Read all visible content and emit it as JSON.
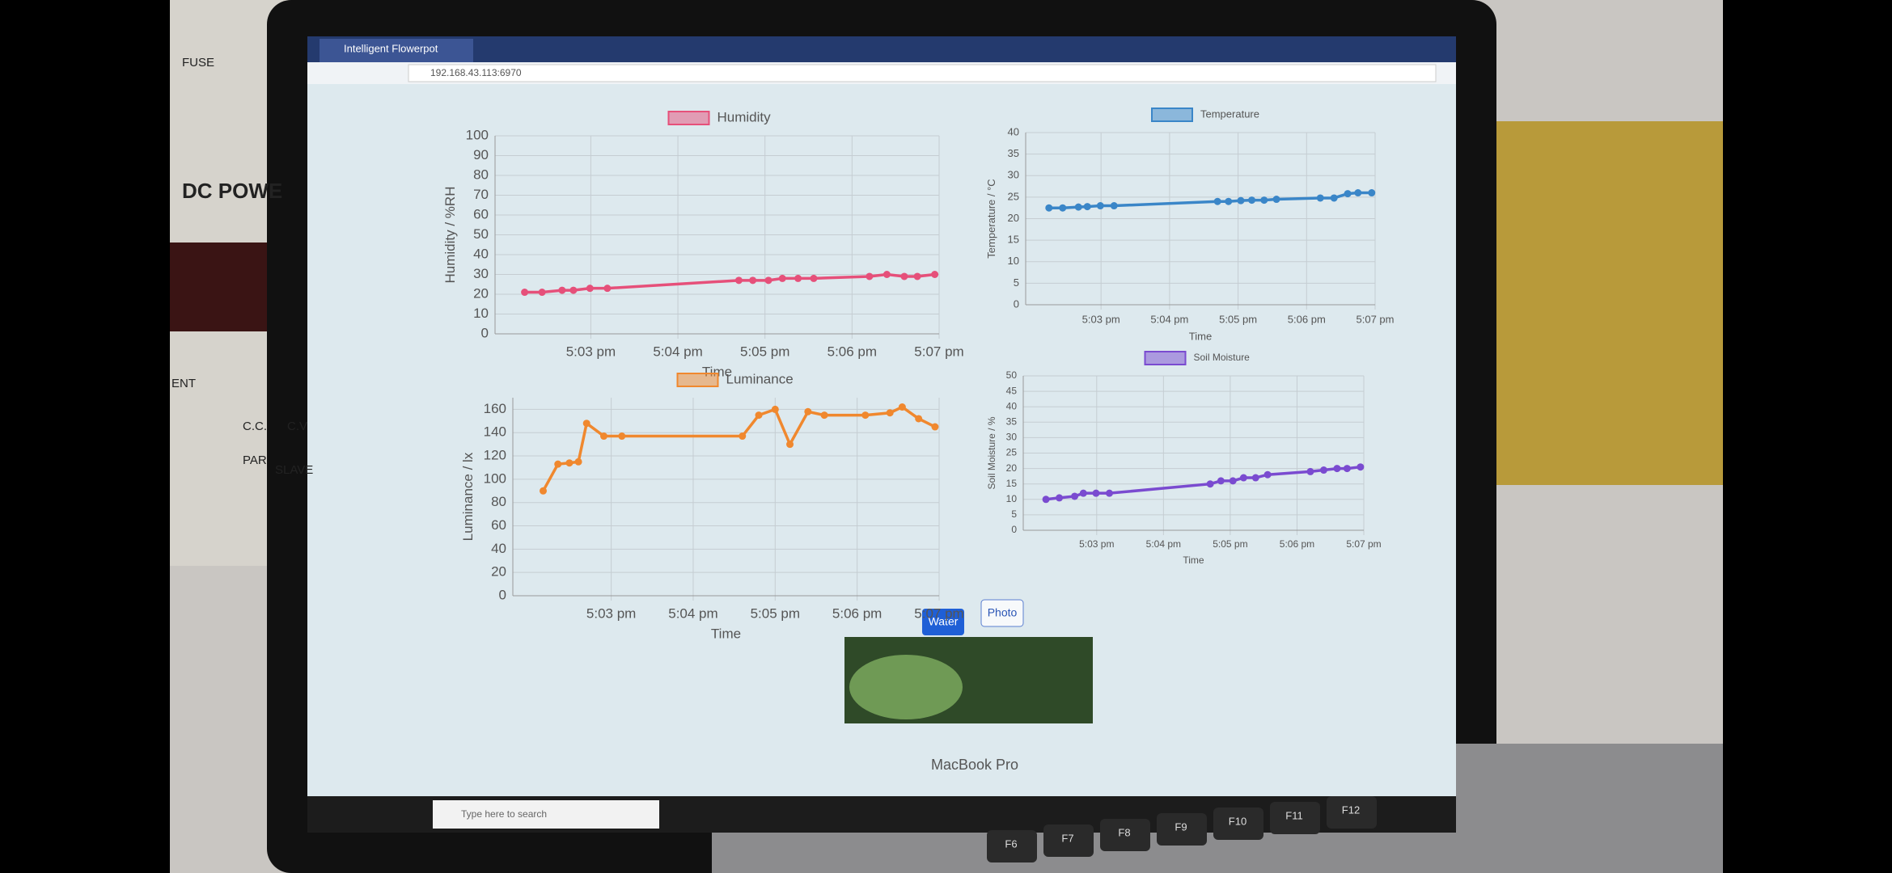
{
  "browser": {
    "tab_title": "Intelligent Flowerpot",
    "url": "192.168.43.113:6970"
  },
  "chart_data": [
    {
      "type": "line",
      "xlabel": "Time",
      "ylabel": "Humidity / %RH",
      "x": [
        2.24,
        2.44,
        2.67,
        2.8,
        2.99,
        3.19,
        4.7,
        4.86,
        5.04,
        5.2,
        5.38,
        5.56,
        6.2,
        6.4,
        6.6,
        6.75,
        6.95
      ],
      "series": [
        {
          "name": "Humidity",
          "color": "#e6507a",
          "values": [
            21,
            21,
            22,
            22,
            23,
            23,
            27,
            27,
            27,
            28,
            28,
            28,
            29,
            30,
            29,
            29,
            30
          ]
        }
      ],
      "xlim": [
        1.9,
        7
      ],
      "xticks": [
        {
          "value": 3,
          "label": "5:03 pm"
        },
        {
          "value": 4,
          "label": "5:04 pm"
        },
        {
          "value": 5,
          "label": "5:05 pm"
        },
        {
          "value": 6,
          "label": "5:06 pm"
        },
        {
          "value": 7,
          "label": "5:07 pm"
        }
      ],
      "ylim": [
        0,
        100
      ],
      "yticks": [
        0,
        10,
        20,
        30,
        40,
        50,
        60,
        70,
        80,
        90,
        100
      ],
      "grid": true
    },
    {
      "type": "line",
      "xlabel": "Time",
      "ylabel": "Temperature / °C",
      "x": [
        2.24,
        2.44,
        2.67,
        2.8,
        2.99,
        3.19,
        4.7,
        4.86,
        5.04,
        5.2,
        5.38,
        5.56,
        6.2,
        6.4,
        6.6,
        6.75,
        6.95
      ],
      "series": [
        {
          "name": "Temperature",
          "color": "#3a86c8",
          "values": [
            22.5,
            22.5,
            22.7,
            22.8,
            23,
            23,
            24,
            24,
            24.2,
            24.3,
            24.3,
            24.5,
            24.8,
            24.8,
            25.8,
            26,
            26
          ]
        }
      ],
      "xlim": [
        1.9,
        7
      ],
      "xticks": [
        {
          "value": 3,
          "label": "5:03 pm"
        },
        {
          "value": 4,
          "label": "5:04 pm"
        },
        {
          "value": 5,
          "label": "5:05 pm"
        },
        {
          "value": 6,
          "label": "5:06 pm"
        },
        {
          "value": 7,
          "label": "5:07 pm"
        }
      ],
      "ylim": [
        0,
        40
      ],
      "yticks": [
        0,
        5,
        10,
        15,
        20,
        25,
        30,
        35,
        40
      ],
      "grid": true
    },
    {
      "type": "line",
      "xlabel": "Time",
      "ylabel": "Luminance / lx",
      "x": [
        2.17,
        2.35,
        2.49,
        2.6,
        2.7,
        2.91,
        3.13,
        4.6,
        4.8,
        5.0,
        5.18,
        5.4,
        5.6,
        6.1,
        6.4,
        6.55,
        6.75,
        6.95
      ],
      "series": [
        {
          "name": "Luminance",
          "color": "#f0882e",
          "values": [
            90,
            113,
            114,
            115,
            148,
            137,
            137,
            137,
            155,
            160,
            130,
            158,
            155,
            155,
            157,
            162,
            152,
            145
          ]
        }
      ],
      "xlim": [
        1.8,
        7
      ],
      "xticks": [
        {
          "value": 3,
          "label": "5:03 pm"
        },
        {
          "value": 4,
          "label": "5:04 pm"
        },
        {
          "value": 5,
          "label": "5:05 pm"
        },
        {
          "value": 6,
          "label": "5:06 pm"
        },
        {
          "value": 7,
          "label": "5:07 pm"
        }
      ],
      "ylim": [
        0,
        170
      ],
      "yticks": [
        0,
        20,
        40,
        60,
        80,
        100,
        120,
        140,
        160
      ],
      "grid": true
    },
    {
      "type": "line",
      "xlabel": "Time",
      "ylabel": "Soil Moisture / %",
      "x": [
        2.24,
        2.44,
        2.67,
        2.8,
        2.99,
        3.19,
        4.7,
        4.86,
        5.04,
        5.2,
        5.38,
        5.56,
        6.2,
        6.4,
        6.6,
        6.75,
        6.95
      ],
      "series": [
        {
          "name": "Soil Moisture",
          "color": "#7a4bd0",
          "values": [
            10,
            10.5,
            11,
            12,
            12,
            12,
            15,
            16,
            16,
            17,
            17,
            18,
            19,
            19.5,
            20,
            20,
            20.5
          ]
        }
      ],
      "xlim": [
        1.9,
        7
      ],
      "xticks": [
        {
          "value": 3,
          "label": "5:03 pm"
        },
        {
          "value": 4,
          "label": "5:04 pm"
        },
        {
          "value": 5,
          "label": "5:05 pm"
        },
        {
          "value": 6,
          "label": "5:06 pm"
        },
        {
          "value": 7,
          "label": "5:07 pm"
        }
      ],
      "ylim": [
        0,
        50
      ],
      "yticks": [
        0,
        5,
        10,
        15,
        20,
        25,
        30,
        35,
        40,
        45,
        50
      ],
      "grid": true
    }
  ],
  "buttons": [
    "Water",
    "Photo"
  ],
  "taskbar": {
    "search": "Type here to search"
  },
  "laptop": {
    "model": "MacBook Pro",
    "keys": [
      "F6",
      "F7",
      "F8",
      "F9",
      "F10",
      "F11",
      "F12"
    ]
  },
  "bench": [
    "FUSE",
    "DC POWE",
    "ENT",
    "C.C.",
    "C.V",
    "PAR",
    "SLAVE"
  ]
}
